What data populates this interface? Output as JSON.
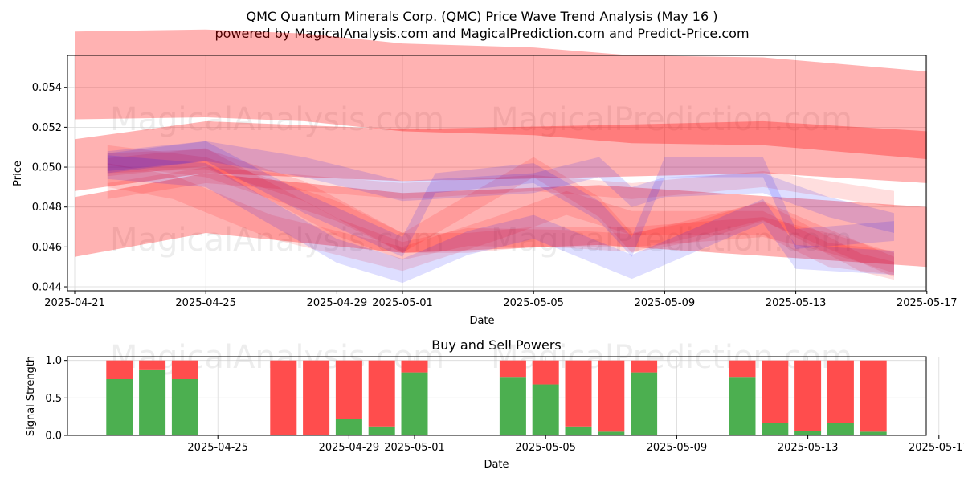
{
  "header": {
    "title_line1": "QMC Quantum Minerals Corp. (QMC) Price Wave Trend Analysis (May 16 )",
    "title_line2": "powered by MagicalAnalysis.com and MagicalPrediction.com and Predict-Price.com"
  },
  "watermarks": [
    "MagicalAnalysis.com",
    "MagicalPrediction.com"
  ],
  "colors": {
    "band_red": "#ff0000",
    "band_blue": "#0000ff",
    "buy": "#4caf50",
    "sell": "#ff4d4d",
    "grid": "#d9d9d9"
  },
  "chart_data": [
    {
      "type": "area",
      "title": "",
      "xlabel": "Date",
      "ylabel": "Price",
      "ylim": [
        0.0438,
        0.0556
      ],
      "xlim": [
        "2025-04-21",
        "2025-05-17"
      ],
      "x_ticks": [
        "2025-04-21",
        "2025-04-25",
        "2025-04-29",
        "2025-05-01",
        "2025-05-05",
        "2025-05-09",
        "2025-05-13",
        "2025-05-17"
      ],
      "y_ticks": [
        "0.044",
        "0.046",
        "0.048",
        "0.050",
        "0.052",
        "0.054"
      ],
      "grid": true,
      "series": [
        {
          "name": "upper band",
          "color": "red",
          "x": [
            0,
            4,
            7,
            10,
            14,
            17,
            21,
            26
          ],
          "y": [
            0.0546,
            0.0547,
            0.0545,
            0.054,
            0.0538,
            0.0534,
            0.0533,
            0.0526
          ],
          "width": 0.0044
        },
        {
          "name": "middle band",
          "color": "red",
          "x": [
            0,
            4,
            10,
            16,
            21,
            26
          ],
          "y": [
            0.0501,
            0.051,
            0.0506,
            0.0508,
            0.051,
            0.0505
          ],
          "width": 0.0026
        },
        {
          "name": "lower band",
          "color": "red",
          "x": [
            0,
            4,
            10,
            16,
            26
          ],
          "y": [
            0.047,
            0.0482,
            0.0472,
            0.0476,
            0.0465
          ],
          "width": 0.003
        },
        {
          "name": "wave 1",
          "color": "red",
          "x": [
            1,
            4,
            7,
            10,
            12,
            14,
            17,
            21,
            23,
            25
          ],
          "y": [
            0.0502,
            0.0504,
            0.0488,
            0.0462,
            0.0462,
            0.0465,
            0.0465,
            0.047,
            0.0462,
            0.0452
          ],
          "width": 0.001
        },
        {
          "name": "wave 2",
          "color": "red",
          "x": [
            1,
            4,
            8,
            10,
            14,
            16,
            17,
            19,
            21,
            25
          ],
          "y": [
            0.0506,
            0.05,
            0.0478,
            0.0462,
            0.05,
            0.048,
            0.0462,
            0.0468,
            0.0478,
            0.045
          ],
          "width": 0.001
        },
        {
          "name": "wave 3",
          "color": "red",
          "x": [
            1,
            4,
            7,
            10,
            14,
            17,
            21,
            25
          ],
          "y": [
            0.0488,
            0.0496,
            0.0492,
            0.0488,
            0.0492,
            0.0488,
            0.0494,
            0.0484
          ],
          "width": 0.0008
        },
        {
          "name": "wave 4",
          "color": "red",
          "x": [
            1,
            3,
            6,
            10,
            13,
            15,
            17,
            21,
            23,
            25
          ],
          "y": [
            0.0496,
            0.049,
            0.047,
            0.0454,
            0.047,
            0.0482,
            0.0472,
            0.0472,
            0.0456,
            0.0452
          ],
          "width": 0.0012
        },
        {
          "name": "wave 5",
          "color": "red",
          "x": [
            1,
            4,
            8,
            10,
            12,
            15,
            17,
            21,
            24,
            25
          ],
          "y": [
            0.05,
            0.0505,
            0.047,
            0.0458,
            0.0465,
            0.0464,
            0.0462,
            0.0478,
            0.0452,
            0.0448
          ],
          "width": 0.0009
        },
        {
          "name": "blue wave 1",
          "color": "blue",
          "x": [
            1,
            4,
            7,
            10,
            11,
            14,
            16,
            17,
            18,
            21,
            22,
            25
          ],
          "y": [
            0.0502,
            0.0508,
            0.0482,
            0.046,
            0.0492,
            0.0497,
            0.0478,
            0.046,
            0.05,
            0.05,
            0.0464,
            0.0468
          ],
          "width": 0.001
        },
        {
          "name": "blue wave 2",
          "color": "blue",
          "x": [
            1,
            4,
            7,
            10,
            14,
            16,
            17,
            18,
            21,
            23,
            25
          ],
          "y": [
            0.0503,
            0.0508,
            0.05,
            0.0488,
            0.0492,
            0.05,
            0.0485,
            0.049,
            0.0492,
            0.048,
            0.0472
          ],
          "width": 0.001
        },
        {
          "name": "blue wave 3",
          "color": "blue",
          "x": [
            1,
            4,
            8,
            10,
            12,
            14,
            17,
            21,
            22,
            25
          ],
          "y": [
            0.05,
            0.0496,
            0.0458,
            0.0448,
            0.0462,
            0.047,
            0.045,
            0.0478,
            0.0455,
            0.0452
          ],
          "width": 0.0012
        }
      ]
    },
    {
      "type": "bar",
      "title": "Buy and Sell Powers",
      "xlabel": "Date",
      "ylabel": "Signal Strength",
      "ylim": [
        0,
        1.05
      ],
      "y_ticks": [
        "0.0",
        "0.5",
        "1.0"
      ],
      "x_ticks": [
        "2025-04-25",
        "2025-04-29",
        "2025-05-01",
        "2025-05-05",
        "2025-05-09",
        "2025-05-13",
        "2025-05-17"
      ],
      "grid": true,
      "bars": [
        {
          "day": 1,
          "buy": 0.75,
          "sell": 0.25
        },
        {
          "day": 2,
          "buy": 0.88,
          "sell": 0.12
        },
        {
          "day": 3,
          "buy": 0.75,
          "sell": 0.25
        },
        {
          "day": 6,
          "buy": 0.0,
          "sell": 1.0
        },
        {
          "day": 7,
          "buy": 0.0,
          "sell": 1.0
        },
        {
          "day": 8,
          "buy": 0.22,
          "sell": 0.78
        },
        {
          "day": 9,
          "buy": 0.12,
          "sell": 0.88
        },
        {
          "day": 10,
          "buy": 0.84,
          "sell": 0.16
        },
        {
          "day": 13,
          "buy": 0.78,
          "sell": 0.22
        },
        {
          "day": 14,
          "buy": 0.68,
          "sell": 0.32
        },
        {
          "day": 15,
          "buy": 0.12,
          "sell": 0.88
        },
        {
          "day": 16,
          "buy": 0.05,
          "sell": 0.95
        },
        {
          "day": 17,
          "buy": 0.84,
          "sell": 0.16
        },
        {
          "day": 20,
          "buy": 0.78,
          "sell": 0.22
        },
        {
          "day": 21,
          "buy": 0.17,
          "sell": 0.83
        },
        {
          "day": 22,
          "buy": 0.06,
          "sell": 0.94
        },
        {
          "day": 23,
          "buy": 0.17,
          "sell": 0.83
        },
        {
          "day": 24,
          "buy": 0.05,
          "sell": 0.95
        }
      ]
    }
  ]
}
